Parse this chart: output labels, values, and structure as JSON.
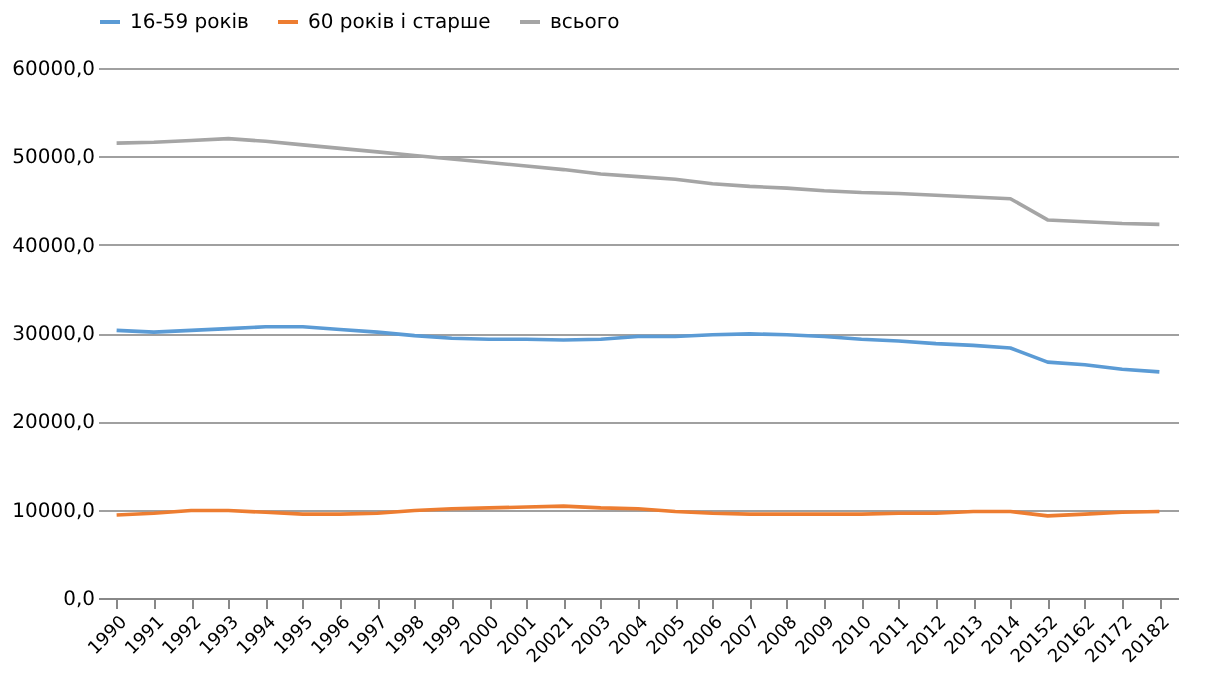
{
  "chart_data": {
    "type": "line",
    "categories": [
      "1990",
      "1991",
      "1992",
      "1993",
      "1994",
      "1995",
      "1996",
      "1997",
      "1998",
      "1999",
      "2000",
      "2001",
      "20021",
      "2003",
      "2004",
      "2005",
      "2006",
      "2007",
      "2008",
      "2009",
      "2010",
      "2011",
      "2012",
      "2013",
      "2014",
      "20152",
      "20162",
      "20172",
      "20182"
    ],
    "series": [
      {
        "name": "16-59 років",
        "color": "#5b9bd5",
        "values": [
          30300,
          30100,
          30300,
          30500,
          30700,
          30700,
          30400,
          30100,
          29700,
          29400,
          29300,
          29300,
          29200,
          29300,
          29600,
          29600,
          29800,
          29900,
          29800,
          29600,
          29300,
          29100,
          28800,
          28600,
          28300,
          26700,
          26400,
          25900,
          25600
        ]
      },
      {
        "name": "60 років і старше",
        "color": "#ed7d31",
        "values": [
          9400,
          9600,
          9900,
          9900,
          9700,
          9500,
          9500,
          9600,
          9900,
          10100,
          10200,
          10300,
          10400,
          10200,
          10100,
          9800,
          9600,
          9500,
          9500,
          9500,
          9500,
          9600,
          9600,
          9800,
          9800,
          9300,
          9500,
          9700,
          9800
        ]
      },
      {
        "name": "всього",
        "color": "#a5a5a5",
        "values": [
          51500,
          51600,
          51800,
          52000,
          51700,
          51300,
          50900,
          50500,
          50100,
          49700,
          49300,
          48900,
          48500,
          48000,
          47700,
          47400,
          46900,
          46600,
          46400,
          46100,
          45900,
          45800,
          45600,
          45400,
          45200,
          42800,
          42600,
          42400,
          42300
        ]
      }
    ],
    "ylim": [
      0,
      60000
    ],
    "yticks": [
      {
        "value": 0,
        "label": "0,0"
      },
      {
        "value": 10000,
        "label": "10000,0"
      },
      {
        "value": 20000,
        "label": "20000,0"
      },
      {
        "value": 30000,
        "label": "30000,0"
      },
      {
        "value": 40000,
        "label": "40000,0"
      },
      {
        "value": 50000,
        "label": "50000,0"
      },
      {
        "value": 60000,
        "label": "60000,0"
      }
    ],
    "grid": "y",
    "legend": "top",
    "marker": "none",
    "line_style": "solid"
  }
}
